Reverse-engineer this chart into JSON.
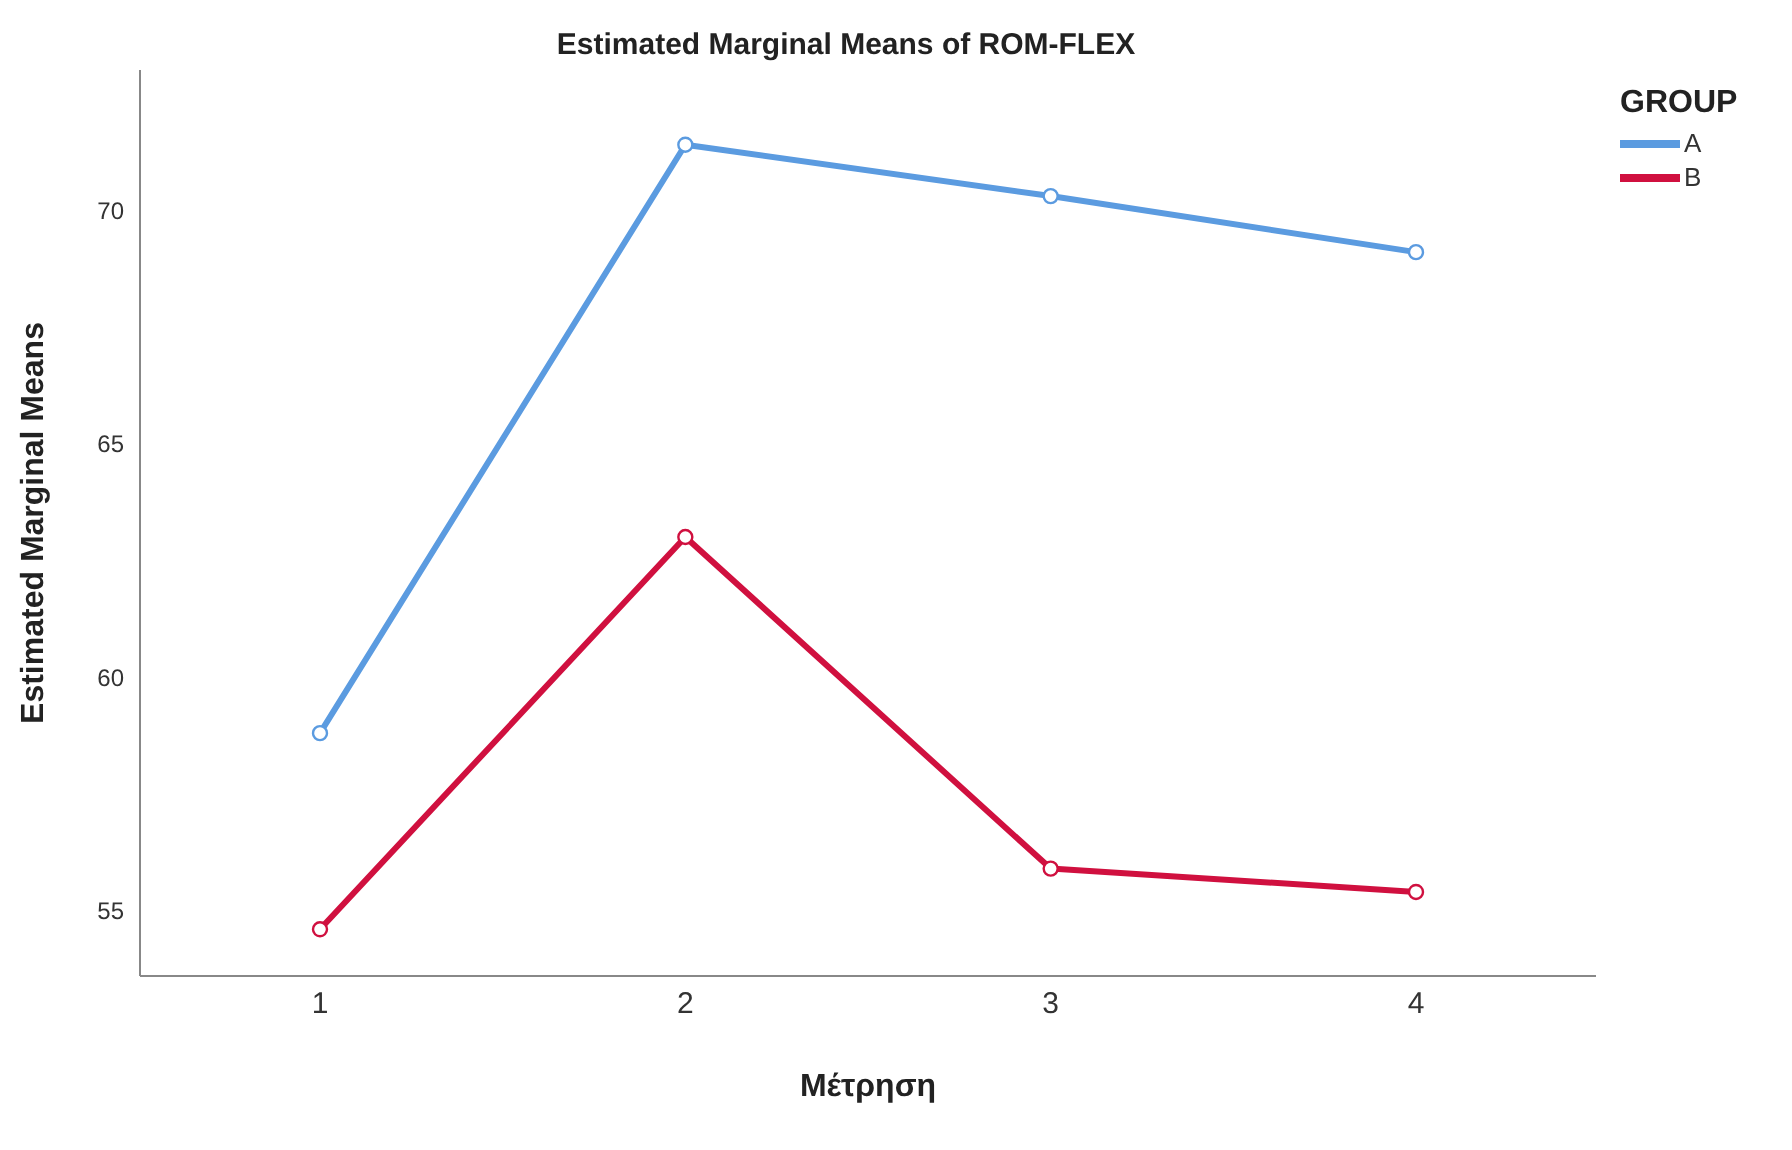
{
  "chart_data": {
    "type": "line",
    "title": "Estimated Marginal Means of ROM-FLEX",
    "xlabel": "Μέτρηση",
    "ylabel": "Estimated Marginal Means",
    "legend_title": "GROUP",
    "categories": [
      "1",
      "2",
      "3",
      "4"
    ],
    "series": [
      {
        "name": "A",
        "color": "#5b9be0",
        "values": [
          58.8,
          71.4,
          70.3,
          69.1
        ]
      },
      {
        "name": "B",
        "color": "#d0103f",
        "values": [
          54.6,
          63.0,
          55.9,
          55.4
        ]
      }
    ],
    "ylim": [
      53.6,
      73
    ],
    "yticks": [
      55,
      60,
      65,
      70
    ],
    "grid": false,
    "legend": "top right",
    "marker": "circle",
    "line_style": "solid"
  }
}
